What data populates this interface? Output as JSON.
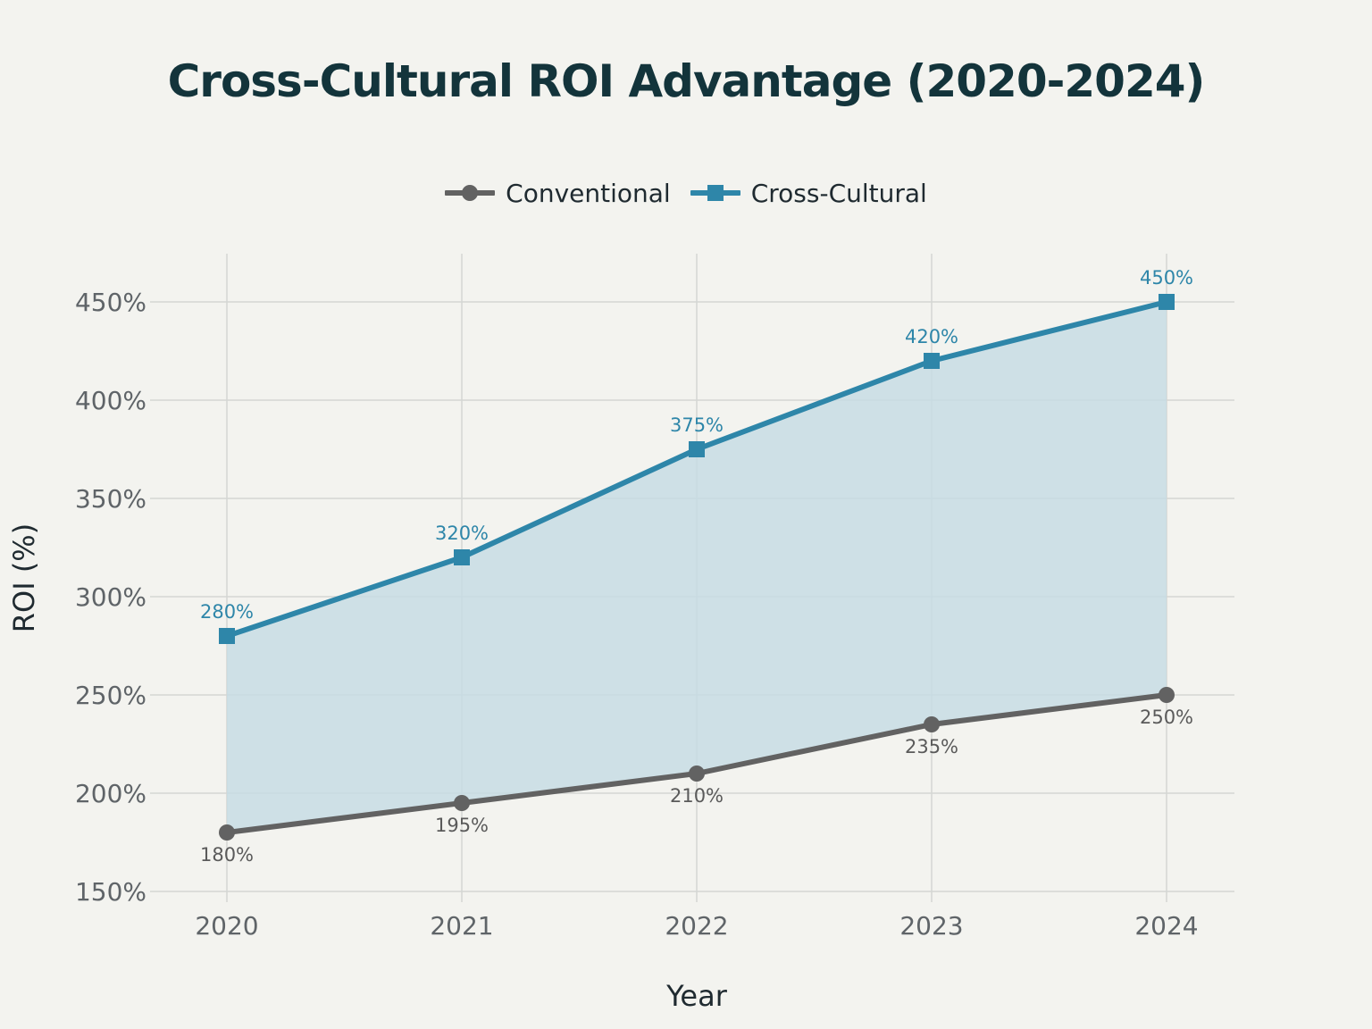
{
  "chart_data": {
    "type": "line",
    "title": "Cross-Cultural ROI Advantage (2020-2024)",
    "xlabel": "Year",
    "ylabel": "ROI (%)",
    "categories": [
      "2020",
      "2021",
      "2022",
      "2023",
      "2024"
    ],
    "ylim": [
      150,
      480
    ],
    "yticks": [
      150,
      200,
      250,
      300,
      350,
      400,
      450
    ],
    "ytick_labels": [
      "150%",
      "200%",
      "250%",
      "300%",
      "350%",
      "400%",
      "450%"
    ],
    "grid": true,
    "legend_position": "top-center",
    "fill_between_series": true,
    "fill_color": "#c6dce4",
    "series": [
      {
        "name": "Conventional",
        "values": [
          180,
          195,
          210,
          235,
          250
        ],
        "labels": [
          "180%",
          "195%",
          "210%",
          "235%",
          "250%"
        ],
        "color": "#626262",
        "marker": "circle",
        "label_position": "below"
      },
      {
        "name": "Cross-Cultural",
        "values": [
          280,
          320,
          375,
          420,
          450
        ],
        "labels": [
          "280%",
          "320%",
          "375%",
          "420%",
          "450%"
        ],
        "color": "#2e86a9",
        "marker": "square",
        "label_position": "above"
      }
    ]
  }
}
